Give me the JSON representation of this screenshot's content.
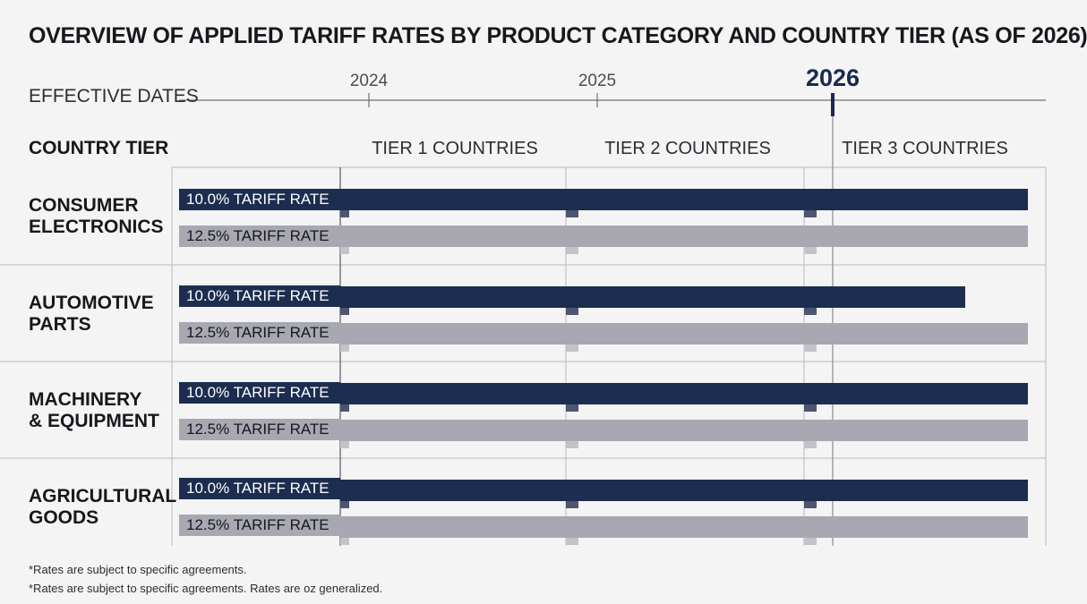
{
  "chart_data": {
    "type": "bar",
    "title": "OVERVIEW OF APPLIED TARIFF RATES BY PRODUCT CATEGORY AND COUNTRY TIER (AS OF 2026)",
    "timeline": {
      "label": "EFFECTIVE DATES",
      "years": [
        {
          "label": "2024",
          "value": 2024
        },
        {
          "label": "2025",
          "value": 2025
        },
        {
          "label": "2026",
          "value": 2026
        }
      ],
      "current": "2026"
    },
    "tier_axis": {
      "label": "COUNTRY TIER",
      "tiers": [
        "TIER 1 COUNTRIES",
        "TIER 2 COUNTRIES",
        "TIER 3 COUNTRIES"
      ],
      "range": [
        0,
        3
      ]
    },
    "categories": [
      {
        "name": "CONSUMER ELECTRONICS",
        "lines": [
          "CONSUMER",
          "ELECTRONICS"
        ],
        "bars": [
          {
            "label": "10.0% TARIFF RATE",
            "rate": 10.0,
            "end": 3.0
          },
          {
            "label": "12.5% TARIFF RATE",
            "rate": 12.5,
            "end": 3.0
          }
        ]
      },
      {
        "name": "AUTOMOTIVE PARTS",
        "lines": [
          "AUTOMOTIVE",
          "PARTS"
        ],
        "bars": [
          {
            "label": "10.0% TARIFF RATE",
            "rate": 10.0,
            "end": 2.72
          },
          {
            "label": "12.5% TARIFF RATE",
            "rate": 12.5,
            "end": 3.0
          }
        ]
      },
      {
        "name": "MACHINERY & EQUIPMENT",
        "lines": [
          "MACHINERY",
          "& EQUIPMENT"
        ],
        "bars": [
          {
            "label": "10.0% TARIFF RATE",
            "rate": 10.0,
            "end": 3.0
          },
          {
            "label": "12.5% TARIFF RATE",
            "rate": 12.5,
            "end": 3.0
          }
        ]
      },
      {
        "name": "AGRICULTURAL GOODS",
        "lines": [
          "AGRICULTURAL",
          "GOODS"
        ],
        "bars": [
          {
            "label": "10.0% TARIFF RATE",
            "rate": 10.0,
            "end": 3.0
          },
          {
            "label": "12.5% TARIFF RATE",
            "rate": 12.5,
            "end": 3.0
          }
        ]
      }
    ],
    "series": [
      {
        "name": "10.0% TARIFF RATE",
        "color": "#1c2d50"
      },
      {
        "name": "12.5% TARIFF RATE",
        "color": "#a7a8b1"
      }
    ],
    "grid": true
  },
  "footnotes": [
    "*Rates are subject to specific agreements.",
    "*Rates are subject to specific agreements. Rates are oz generalized."
  ]
}
